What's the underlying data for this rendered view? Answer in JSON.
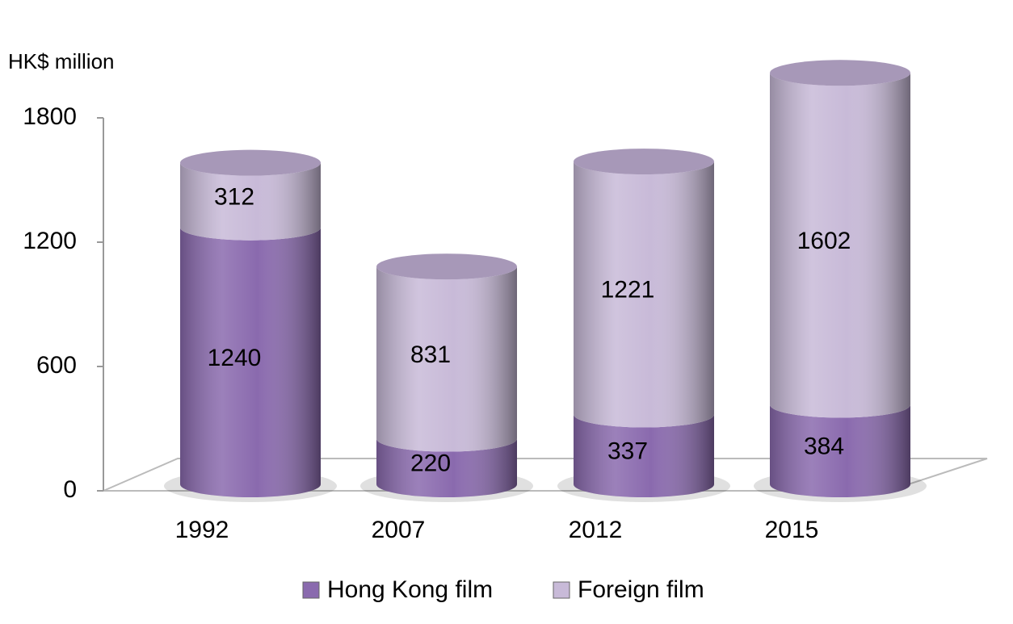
{
  "chart_data": {
    "type": "bar",
    "stacked": true,
    "y_label": "HK$ million",
    "categories": [
      "1992",
      "2007",
      "2012",
      "2015"
    ],
    "series": [
      {
        "name": "Hong Kong film",
        "color": "#8a6aae",
        "values": [
          1240,
          220,
          337,
          384
        ]
      },
      {
        "name": "Foreign film",
        "color": "#c8bad8",
        "values": [
          312,
          831,
          1221,
          1602
        ]
      }
    ],
    "ylim": [
      0,
      1800
    ],
    "yticks": [
      0,
      600,
      1200,
      1800
    ]
  }
}
